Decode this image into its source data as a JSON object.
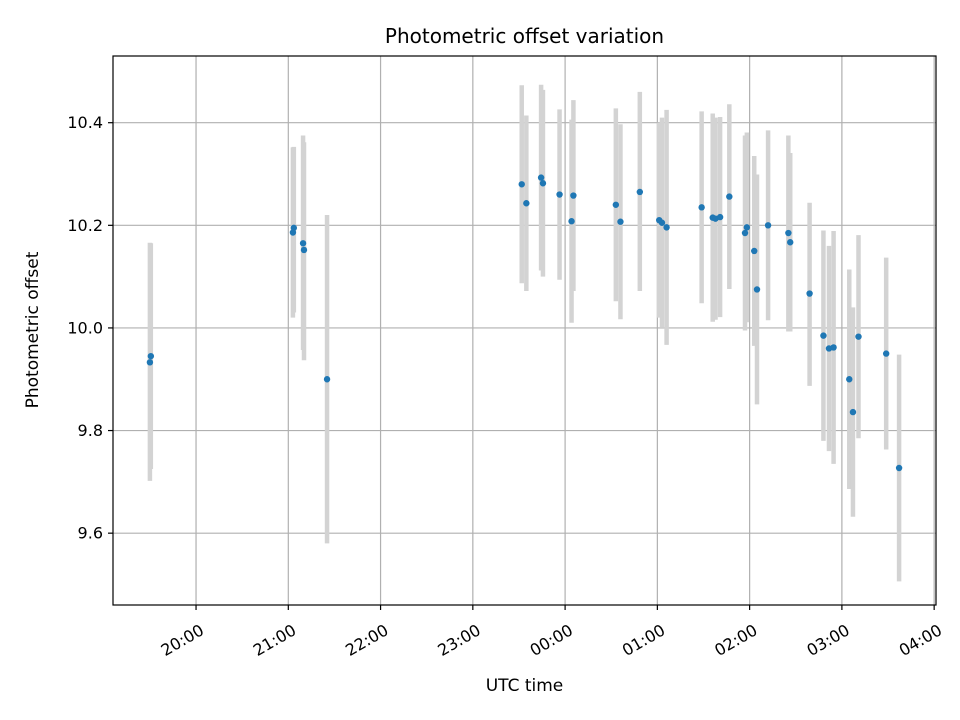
{
  "chart_data": {
    "type": "scatter",
    "title": "Photometric offset variation",
    "xlabel": "UTC time",
    "ylabel": "Photometric offset",
    "x_unit": "UTC time, hours since 20:00 on first night (values >4 are after midnight)",
    "xlim": [
      -0.9,
      8.02
    ],
    "ylim": [
      9.46,
      10.53
    ],
    "x_ticks": [
      {
        "value": 0,
        "label": "20:00"
      },
      {
        "value": 1,
        "label": "21:00"
      },
      {
        "value": 2,
        "label": "22:00"
      },
      {
        "value": 3,
        "label": "23:00"
      },
      {
        "value": 4,
        "label": "00:00"
      },
      {
        "value": 5,
        "label": "01:00"
      },
      {
        "value": 6,
        "label": "02:00"
      },
      {
        "value": 7,
        "label": "03:00"
      },
      {
        "value": 8,
        "label": "04:00"
      }
    ],
    "y_ticks": [
      {
        "value": 9.6,
        "label": "9.6"
      },
      {
        "value": 9.8,
        "label": "9.8"
      },
      {
        "value": 10.0,
        "label": "10.0"
      },
      {
        "value": 10.2,
        "label": "10.2"
      },
      {
        "value": 10.4,
        "label": "10.4"
      }
    ],
    "grid": true,
    "colors": {
      "point": "#1f77b4",
      "errorbar": "#d3d3d3",
      "grid": "#b0b0b0"
    },
    "points": [
      {
        "x": -0.5,
        "y": 9.933,
        "lo": 9.702,
        "hi": 10.166
      },
      {
        "x": -0.49,
        "y": 9.945,
        "lo": 9.725,
        "hi": 10.165
      },
      {
        "x": 1.05,
        "y": 10.186,
        "lo": 10.02,
        "hi": 10.352
      },
      {
        "x": 1.06,
        "y": 10.195,
        "lo": 10.03,
        "hi": 10.353
      },
      {
        "x": 1.16,
        "y": 10.165,
        "lo": 9.957,
        "hi": 10.375
      },
      {
        "x": 1.17,
        "y": 10.152,
        "lo": 9.937,
        "hi": 10.362
      },
      {
        "x": 1.42,
        "y": 9.9,
        "lo": 9.58,
        "hi": 10.22
      },
      {
        "x": 3.53,
        "y": 10.28,
        "lo": 10.087,
        "hi": 10.473
      },
      {
        "x": 3.58,
        "y": 10.243,
        "lo": 10.072,
        "hi": 10.414
      },
      {
        "x": 3.74,
        "y": 10.293,
        "lo": 10.112,
        "hi": 10.474
      },
      {
        "x": 3.76,
        "y": 10.282,
        "lo": 10.1,
        "hi": 10.464
      },
      {
        "x": 3.94,
        "y": 10.26,
        "lo": 10.094,
        "hi": 10.426
      },
      {
        "x": 4.07,
        "y": 10.208,
        "lo": 10.01,
        "hi": 10.406
      },
      {
        "x": 4.09,
        "y": 10.258,
        "lo": 10.072,
        "hi": 10.444
      },
      {
        "x": 4.55,
        "y": 10.24,
        "lo": 10.052,
        "hi": 10.428
      },
      {
        "x": 4.6,
        "y": 10.207,
        "lo": 10.017,
        "hi": 10.397
      },
      {
        "x": 4.81,
        "y": 10.265,
        "lo": 10.072,
        "hi": 10.46
      },
      {
        "x": 5.02,
        "y": 10.21,
        "lo": 10.02,
        "hi": 10.4
      },
      {
        "x": 5.05,
        "y": 10.205,
        "lo": 10.0,
        "hi": 10.41
      },
      {
        "x": 5.1,
        "y": 10.196,
        "lo": 9.967,
        "hi": 10.425
      },
      {
        "x": 5.48,
        "y": 10.235,
        "lo": 10.048,
        "hi": 10.422
      },
      {
        "x": 5.6,
        "y": 10.215,
        "lo": 10.012,
        "hi": 10.418
      },
      {
        "x": 5.63,
        "y": 10.213,
        "lo": 10.016,
        "hi": 10.41
      },
      {
        "x": 5.68,
        "y": 10.216,
        "lo": 10.021,
        "hi": 10.411
      },
      {
        "x": 5.78,
        "y": 10.256,
        "lo": 10.076,
        "hi": 10.436
      },
      {
        "x": 5.95,
        "y": 10.185,
        "lo": 9.995,
        "hi": 10.375
      },
      {
        "x": 5.97,
        "y": 10.196,
        "lo": 10.011,
        "hi": 10.381
      },
      {
        "x": 6.05,
        "y": 10.15,
        "lo": 9.965,
        "hi": 10.335
      },
      {
        "x": 6.08,
        "y": 10.075,
        "lo": 9.851,
        "hi": 10.299
      },
      {
        "x": 6.2,
        "y": 10.2,
        "lo": 10.015,
        "hi": 10.385
      },
      {
        "x": 6.42,
        "y": 10.185,
        "lo": 9.993,
        "hi": 10.375
      },
      {
        "x": 6.44,
        "y": 10.167,
        "lo": 9.993,
        "hi": 10.341
      },
      {
        "x": 6.65,
        "y": 10.067,
        "lo": 9.887,
        "hi": 10.244
      },
      {
        "x": 6.8,
        "y": 9.985,
        "lo": 9.78,
        "hi": 10.19
      },
      {
        "x": 6.86,
        "y": 9.96,
        "lo": 9.76,
        "hi": 10.16
      },
      {
        "x": 6.91,
        "y": 9.962,
        "lo": 9.735,
        "hi": 10.189
      },
      {
        "x": 7.08,
        "y": 9.9,
        "lo": 9.686,
        "hi": 10.114
      },
      {
        "x": 7.12,
        "y": 9.836,
        "lo": 9.632,
        "hi": 10.04
      },
      {
        "x": 7.18,
        "y": 9.983,
        "lo": 9.785,
        "hi": 10.181
      },
      {
        "x": 7.48,
        "y": 9.95,
        "lo": 9.763,
        "hi": 10.137
      },
      {
        "x": 7.62,
        "y": 9.727,
        "lo": 9.506,
        "hi": 9.948
      }
    ]
  }
}
